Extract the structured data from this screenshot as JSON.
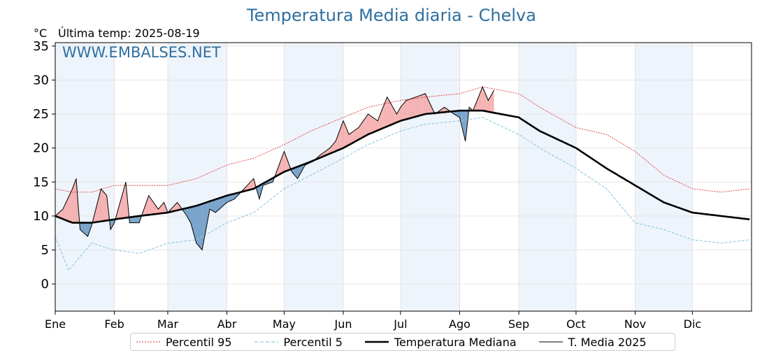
{
  "title": "Temperatura Media diaria - Chelva",
  "unit_label": "°C",
  "last_temp_label": "Última temp: 2025-08-19",
  "watermark": "WWW.EMBALSES.NET",
  "colors": {
    "title": "#2f6f9f",
    "p95": "#e02020",
    "p5": "#8ecae6",
    "median": "#000000",
    "current": "#000000",
    "warm_fill": "#f4a6a6",
    "cold_fill": "#5a8fbf",
    "month_band": "#eef4fb"
  },
  "chart_data": {
    "type": "line",
    "xlabel": "",
    "ylabel": "°C",
    "ylim": [
      -4,
      35.5
    ],
    "yticks": [
      0,
      5,
      10,
      15,
      20,
      25,
      30,
      35
    ],
    "months": [
      "Ene",
      "Feb",
      "Mar",
      "Abr",
      "May",
      "Jun",
      "Jul",
      "Ago",
      "Sep",
      "Oct",
      "Nov",
      "Dic"
    ],
    "month_start_days": [
      1,
      32,
      60,
      91,
      121,
      152,
      182,
      213,
      244,
      274,
      305,
      335
    ],
    "grid": true,
    "legend_placement": "bottom-center",
    "series": [
      {
        "name": "Percentil 95",
        "x": [
          1,
          10,
          20,
          32,
          45,
          60,
          75,
          91,
          105,
          121,
          135,
          152,
          165,
          182,
          195,
          213,
          225,
          244,
          255,
          274,
          290,
          305,
          320,
          335,
          350,
          365
        ],
        "values": [
          14,
          13.5,
          13.5,
          14.5,
          14.5,
          14.5,
          15.5,
          17.5,
          18.5,
          20.5,
          22.5,
          24.5,
          26,
          27,
          27.5,
          28,
          29,
          28,
          26,
          23,
          22,
          19.5,
          16,
          14,
          13.5,
          14
        ]
      },
      {
        "name": "Percentil 5",
        "x": [
          1,
          8,
          20,
          32,
          45,
          60,
          75,
          91,
          105,
          121,
          135,
          152,
          165,
          182,
          195,
          213,
          225,
          244,
          255,
          274,
          290,
          305,
          320,
          335,
          350,
          365
        ],
        "values": [
          7,
          2,
          6,
          5,
          4.5,
          6,
          6.5,
          9,
          10.5,
          14,
          16,
          18.5,
          20.5,
          22.5,
          23.5,
          24,
          24.5,
          22,
          20,
          17,
          14,
          9,
          8,
          6.5,
          6,
          6.5
        ]
      },
      {
        "name": "Temperatura Mediana",
        "x": [
          1,
          10,
          20,
          32,
          45,
          60,
          75,
          91,
          105,
          121,
          135,
          152,
          165,
          182,
          195,
          213,
          225,
          244,
          255,
          274,
          290,
          305,
          320,
          335,
          350,
          365
        ],
        "values": [
          10,
          9,
          9,
          9.5,
          10,
          10.5,
          11.5,
          13,
          14,
          16.5,
          18,
          20,
          22,
          24,
          25,
          25.5,
          25.5,
          24.5,
          22.5,
          20,
          17,
          14.5,
          12,
          10.5,
          10,
          9.5
        ]
      },
      {
        "name": "T. Media 2025",
        "x": [
          1,
          5,
          10,
          12,
          14,
          18,
          20,
          25,
          28,
          30,
          32,
          38,
          40,
          45,
          50,
          55,
          58,
          60,
          65,
          70,
          72,
          75,
          78,
          82,
          85,
          91,
          95,
          100,
          105,
          108,
          110,
          115,
          121,
          125,
          128,
          132,
          136,
          140,
          145,
          148,
          152,
          155,
          160,
          165,
          170,
          175,
          180,
          182,
          185,
          190,
          195,
          200,
          205,
          210,
          213,
          216,
          218,
          220,
          225,
          228,
          231
        ],
        "values": [
          10,
          11,
          14,
          15.5,
          8,
          7,
          8.5,
          14,
          13,
          8,
          9,
          15,
          9,
          9,
          13,
          11,
          12,
          10.5,
          12,
          10,
          9,
          6,
          5,
          11,
          10.5,
          12,
          12.5,
          14,
          15.5,
          12.5,
          14.5,
          15,
          19.5,
          16.5,
          15.5,
          17.5,
          18,
          19,
          20,
          21,
          24,
          22,
          23,
          25,
          24,
          27.5,
          25,
          26,
          27,
          27.5,
          28,
          25,
          26,
          25,
          24.5,
          21,
          26,
          25.5,
          29,
          27,
          28.5
        ]
      }
    ]
  },
  "legend": {
    "p95": "Percentil 95",
    "p5": "Percentil 5",
    "median": "Temperatura Mediana",
    "current": "T. Media 2025"
  }
}
